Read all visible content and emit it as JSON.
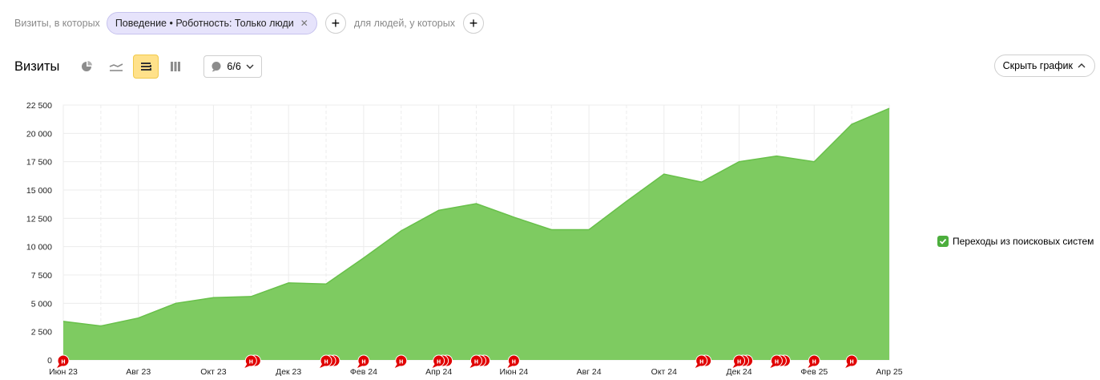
{
  "filters": {
    "prefix": "Визиты, в которых",
    "segment_chip": "Поведение • Роботность: Только люди",
    "middle": "для людей, у которых"
  },
  "toolbar": {
    "title": "Визиты",
    "notes_count": "6/6",
    "icons": [
      "pie-chart-icon",
      "line-chart-icon",
      "area-chart-icon",
      "bar-chart-icon"
    ],
    "active_icon": "area-chart-icon"
  },
  "hide_chart_label": "Скрыть график",
  "legend": {
    "label": "Переходы из поисковых систем",
    "checked": true
  },
  "colors": {
    "area": "#7ecb61",
    "line": "#68c04a",
    "marker": "#e00000",
    "chip": "#e6e3fb",
    "active": "#ffe18a"
  },
  "chart_data": {
    "type": "area",
    "title": "",
    "xlabel": "",
    "ylabel": "",
    "ylim": [
      0,
      22500
    ],
    "yticks": [
      "22 500",
      "20 000",
      "17 500",
      "15 000",
      "12 500",
      "10 000",
      "7 500",
      "5 000",
      "2 500",
      "0"
    ],
    "ytick_values": [
      22500,
      20000,
      17500,
      15000,
      12500,
      10000,
      7500,
      5000,
      2500,
      0
    ],
    "x": [
      "2023-06",
      "2023-07",
      "2023-08",
      "2023-09",
      "2023-10",
      "2023-11",
      "2023-12",
      "2024-01",
      "2024-02",
      "2024-03",
      "2024-04",
      "2024-05",
      "2024-06",
      "2024-07",
      "2024-08",
      "2024-09",
      "2024-10",
      "2024-11",
      "2024-12",
      "2025-01",
      "2025-02",
      "2025-03",
      "2025-04"
    ],
    "xticks": [
      "Июн 23",
      "Авг 23",
      "Окт 23",
      "Дек 23",
      "Фев 24",
      "Апр 24",
      "Июн 24",
      "Авг 24",
      "Окт 24",
      "Дек 24",
      "Фев 25",
      "Апр 25"
    ],
    "xtick_index": [
      0,
      2,
      4,
      6,
      8,
      10,
      12,
      14,
      16,
      18,
      20,
      22
    ],
    "series": [
      {
        "name": "Переходы из поисковых систем",
        "values": [
          3400,
          3000,
          3700,
          5000,
          5500,
          5600,
          6800,
          6700,
          9000,
          11400,
          13200,
          13800,
          12600,
          11500,
          11500,
          14000,
          16400,
          15700,
          17500,
          18000,
          17500,
          20800,
          22200
        ]
      }
    ],
    "grid": true,
    "legend_position": "right",
    "annotation_label": "н",
    "annotations": [
      {
        "x": "2023-06",
        "count": 1
      },
      {
        "x": "2023-11",
        "count": 2
      },
      {
        "x": "2024-01",
        "count": 3
      },
      {
        "x": "2024-02",
        "count": 1
      },
      {
        "x": "2024-03",
        "count": 1
      },
      {
        "x": "2024-04",
        "count": 3
      },
      {
        "x": "2024-05",
        "count": 3
      },
      {
        "x": "2024-06",
        "count": 1
      },
      {
        "x": "2024-11",
        "count": 2
      },
      {
        "x": "2024-12",
        "count": 3
      },
      {
        "x": "2025-01",
        "count": 3
      },
      {
        "x": "2025-02",
        "count": 1
      },
      {
        "x": "2025-03",
        "count": 1
      }
    ]
  }
}
